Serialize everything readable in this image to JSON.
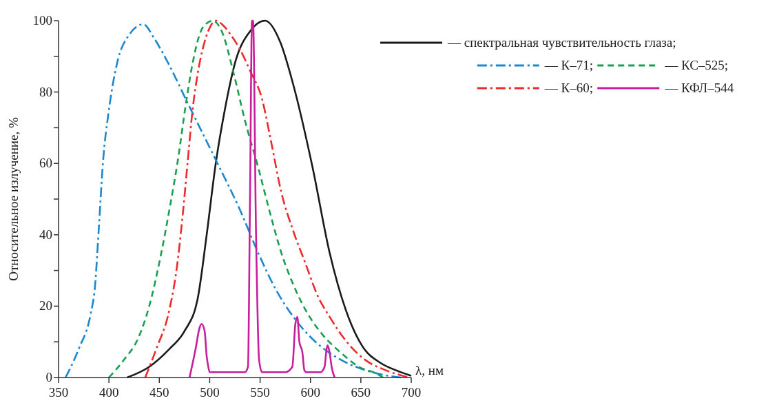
{
  "chart_data": {
    "type": "line",
    "xlabel": "λ, нм",
    "ylabel": "Относительное излучение, %",
    "xlim": [
      350,
      700
    ],
    "ylim": [
      0,
      100
    ],
    "xticks": [
      350,
      400,
      450,
      500,
      550,
      600,
      650,
      700
    ],
    "yticks": [
      0,
      {
        "value": 10,
        "label": null
      },
      20,
      {
        "value": 30,
        "label": null
      },
      40,
      {
        "value": 50,
        "label": null
      },
      60,
      {
        "value": 70,
        "label": null
      },
      80,
      {
        "value": 90,
        "label": null
      },
      100
    ],
    "grid": false,
    "legend": "top right",
    "marker": "none",
    "series": [
      {
        "name": "— спектральная чувствительность глаза;",
        "color": "#1a1a1a",
        "line_style": "solid",
        "x": [
          418,
          440,
          460,
          475,
          488,
          497,
          506,
          515,
          526,
          540,
          555,
          570,
          583,
          602,
          619,
          635,
          651,
          670,
          685,
          700
        ],
        "values": [
          0,
          3,
          8,
          13,
          22,
          40,
          60,
          75,
          89,
          97,
          100,
          94,
          82,
          59,
          35,
          19,
          9,
          4,
          2,
          0.5
        ]
      },
      {
        "name": "— К–71;",
        "color": "#1a88d0",
        "line_style": "dashdot",
        "x": [
          357,
          370,
          382,
          386,
          390,
          394,
          400,
          408,
          420,
          434,
          445,
          459,
          478,
          506,
          530,
          548,
          565,
          583,
          605,
          630,
          655,
          677,
          690
        ],
        "values": [
          0,
          8,
          18,
          25,
          42,
          60,
          75,
          88,
          96,
          99,
          95,
          88,
          77,
          61,
          47,
          35,
          25,
          17,
          10,
          5,
          2,
          0.5,
          0
        ]
      },
      {
        "name": "— КС–525;",
        "color": "#18a050",
        "line_style": "dashed",
        "x": [
          400,
          415,
          429,
          440,
          452,
          460,
          469,
          476,
          483,
          493,
          503,
          512,
          524,
          535,
          548,
          560,
          571,
          583,
          595,
          612,
          630,
          648,
          666,
          672
        ],
        "values": [
          0,
          5,
          11,
          20,
          35,
          47,
          62,
          76,
          88,
          98,
          100,
          97,
          85,
          72,
          59,
          46,
          35,
          26,
          19,
          12,
          7,
          3,
          1,
          0
        ]
      },
      {
        "name": "— К–60;",
        "color": "#ee2a2a",
        "line_style": "dashdot",
        "x": [
          436,
          447,
          460,
          467,
          473,
          478,
          483,
          488,
          493,
          500,
          506,
          514,
          521,
          530,
          540,
          552,
          561,
          571,
          583,
          595,
          607,
          619,
          636,
          654,
          675,
          698
        ],
        "values": [
          0,
          8,
          19,
          30,
          45,
          60,
          75,
          85,
          92,
          98,
          100,
          98.5,
          96,
          92,
          86,
          78,
          66,
          52,
          41,
          32,
          23,
          17,
          10,
          5,
          2,
          0
        ]
      },
      {
        "name": "— КФЛ–544",
        "color": "#c81e9c",
        "line_style": "solid",
        "x": [
          480,
          486,
          490,
          492,
          495,
          497,
          498,
          500,
          520,
          535,
          538,
          540,
          542,
          543,
          546,
          549,
          552,
          575,
          582,
          585,
          587,
          589,
          592,
          594,
          596,
          610,
          614,
          616,
          617,
          619,
          621,
          624
        ],
        "values": [
          0,
          8,
          14,
          15,
          13,
          6,
          4,
          1.5,
          1.5,
          1.5,
          3,
          50,
          100,
          100,
          40,
          5,
          1.5,
          1.5,
          3,
          15,
          17,
          10,
          7,
          2,
          1.5,
          1.5,
          3,
          8,
          9,
          7,
          3,
          0
        ]
      }
    ]
  }
}
